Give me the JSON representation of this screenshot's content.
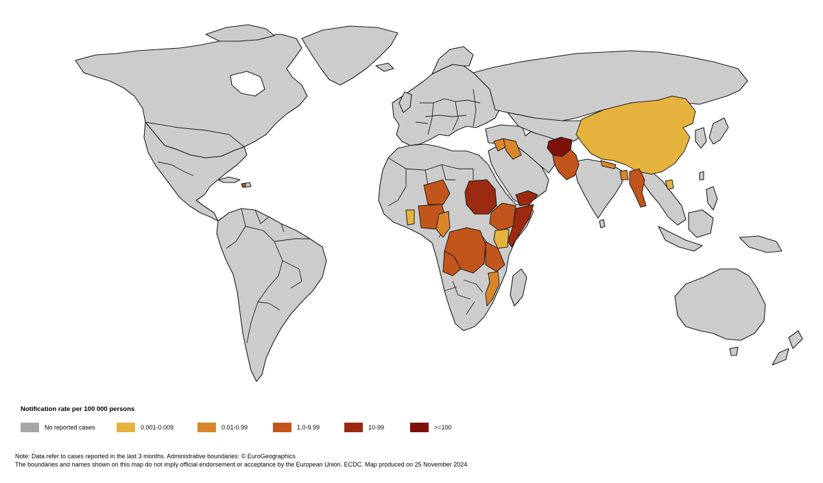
{
  "legend": {
    "title": "Notification rate per 100 000 persons",
    "items": [
      {
        "label": "No reported cases",
        "color": "#a6a6a6"
      },
      {
        "label": "0.001-0.009",
        "color": "#e6b23e"
      },
      {
        "label": "0.01-0.99",
        "color": "#d9862a"
      },
      {
        "label": "1.0-9.99",
        "color": "#c2551c"
      },
      {
        "label": "10-99",
        "color": "#9c2a10"
      },
      {
        "label": ">=100",
        "color": "#7e1208"
      }
    ]
  },
  "note": {
    "line1": "Note: Data refer to cases reported in the last 3 months. Administrative boundaries: © EuroGeographics",
    "line2": "The boundaries and names shown on this map do not imply official endorsement or acceptance by the European Union. ECDC. Map produced on 25 November 2024"
  },
  "map": {
    "base_color": "#cccccc",
    "highlighted_countries": [
      {
        "name": "Afghanistan",
        "class": ">=100"
      },
      {
        "name": "Pakistan",
        "class": "1.0-9.99"
      },
      {
        "name": "China",
        "class": "0.001-0.009"
      },
      {
        "name": "Myanmar",
        "class": "1.0-9.99"
      },
      {
        "name": "Bangladesh",
        "class": "0.01-0.99"
      },
      {
        "name": "Nepal",
        "class": "0.01-0.99"
      },
      {
        "name": "Iraq",
        "class": "0.01-0.99"
      },
      {
        "name": "Syria",
        "class": "0.01-0.99"
      },
      {
        "name": "Yemen",
        "class": "10-99"
      },
      {
        "name": "Somalia",
        "class": "10-99"
      },
      {
        "name": "Sudan",
        "class": "10-99"
      },
      {
        "name": "Ethiopia",
        "class": "1.0-9.99"
      },
      {
        "name": "Kenya",
        "class": "0.001-0.009"
      },
      {
        "name": "Democratic Republic of the Congo",
        "class": "1.0-9.99"
      },
      {
        "name": "Tanzania",
        "class": "1.0-9.99"
      },
      {
        "name": "Mozambique",
        "class": "0.01-0.99"
      },
      {
        "name": "Niger",
        "class": "1.0-9.99"
      },
      {
        "name": "Nigeria",
        "class": "1.0-9.99"
      },
      {
        "name": "Cameroon",
        "class": "0.01-0.99"
      },
      {
        "name": "Chad",
        "class": "0.01-0.99"
      },
      {
        "name": "Ghana",
        "class": "0.001-0.009"
      },
      {
        "name": "Angola",
        "class": "1.0-9.99"
      },
      {
        "name": "Haiti",
        "class": "1.0-9.99"
      },
      {
        "name": "Vietnam",
        "class": "0.001-0.009"
      }
    ]
  }
}
